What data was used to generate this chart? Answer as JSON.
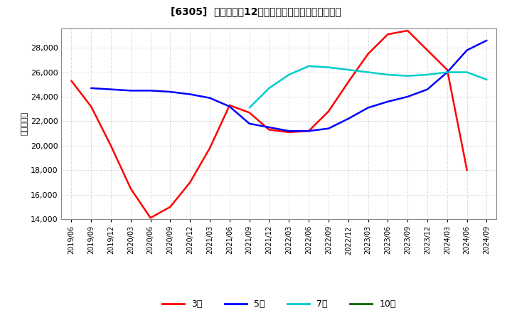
{
  "title": "[6305]  当期純利益12か月移動合計の標準偏差の推移",
  "ylabel": "（百万円）",
  "background_color": "#ffffff",
  "plot_bg_color": "#ffffff",
  "grid_color": "#aaaaaa",
  "ylim": [
    14000,
    29600
  ],
  "yticks": [
    14000,
    16000,
    18000,
    20000,
    22000,
    24000,
    26000,
    28000
  ],
  "series": {
    "3年": {
      "color": "#ff0000",
      "values_x": [
        0,
        1,
        2,
        3,
        4,
        5,
        6,
        7,
        8,
        9,
        10,
        11,
        12,
        13,
        14,
        15,
        16,
        17,
        18,
        19,
        20
      ],
      "values_y": [
        25300,
        23200,
        20000,
        16500,
        14100,
        15000,
        17000,
        19800,
        23300,
        22700,
        21300,
        21100,
        21200,
        22800,
        25200,
        27500,
        29100,
        29400,
        27800,
        26200,
        18000
      ]
    },
    "5年": {
      "color": "#0000ff",
      "values_x": [
        1,
        2,
        3,
        4,
        5,
        6,
        7,
        8,
        9,
        10,
        11,
        12,
        13,
        14,
        15,
        16,
        17,
        18,
        19,
        20,
        21
      ],
      "values_y": [
        24700,
        24600,
        24500,
        24500,
        24400,
        24200,
        23900,
        23200,
        21800,
        21500,
        21200,
        21200,
        21400,
        22200,
        23100,
        23600,
        24000,
        24600,
        26000,
        27800,
        28600
      ]
    },
    "7年": {
      "color": "#00cccc",
      "values_x": [
        9,
        10,
        11,
        12,
        13,
        14,
        15,
        16,
        17,
        18,
        19,
        20,
        21
      ],
      "values_y": [
        23100,
        24700,
        25800,
        26500,
        26400,
        26200,
        26000,
        25800,
        25700,
        25800,
        26000,
        26000,
        25400
      ]
    },
    "10年": {
      "color": "#006600",
      "values_x": [],
      "values_y": []
    }
  },
  "xtick_labels": [
    "2019/06",
    "2019/09",
    "2019/12",
    "2020/03",
    "2020/06",
    "2020/09",
    "2020/12",
    "2021/03",
    "2021/06",
    "2021/09",
    "2021/12",
    "2022/03",
    "2022/06",
    "2022/09",
    "2022/12",
    "2023/03",
    "2023/06",
    "2023/09",
    "2023/12",
    "2024/03",
    "2024/06",
    "2024/09"
  ],
  "legend_entries": [
    "3年",
    "5年",
    "7年",
    "10年"
  ],
  "legend_colors": [
    "#ff0000",
    "#0000ff",
    "#00cccc",
    "#006600"
  ]
}
